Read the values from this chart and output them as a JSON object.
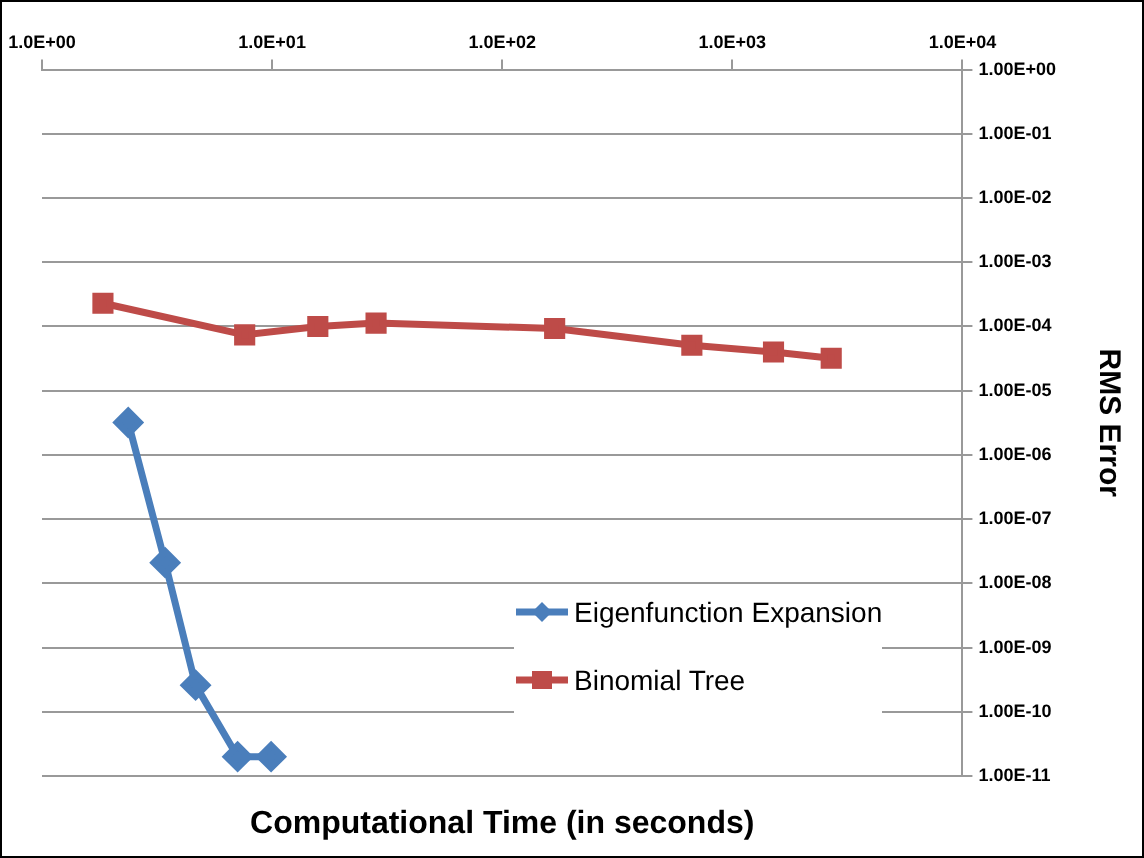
{
  "chart_data": {
    "type": "line",
    "xlabel": "Computational Time (in seconds)",
    "ylabel": "RMS Error",
    "log": "xy",
    "grid": "y",
    "legend": "bottom right",
    "xlim": [
      1,
      10000
    ],
    "xticks": [
      {
        "value": 1,
        "label": "1.0E+00"
      },
      {
        "value": 10,
        "label": "1.0E+01"
      },
      {
        "value": 100,
        "label": "1.0E+02"
      },
      {
        "value": 1000,
        "label": "1.0E+03"
      },
      {
        "value": 10000,
        "label": "1.0E+04"
      }
    ],
    "ylim": [
      1e-11,
      1
    ],
    "yticks": [
      {
        "value": 1,
        "label": "1.00E+00"
      },
      {
        "value": 0.1,
        "label": "1.00E-01"
      },
      {
        "value": 0.01,
        "label": "1.00E-02"
      },
      {
        "value": 0.001,
        "label": "1.00E-03"
      },
      {
        "value": 0.0001,
        "label": "1.00E-04"
      },
      {
        "value": 1e-05,
        "label": "1.00E-05"
      },
      {
        "value": 1e-06,
        "label": "1.00E-06"
      },
      {
        "value": 1e-07,
        "label": "1.00E-07"
      },
      {
        "value": 1e-08,
        "label": "1.00E-08"
      },
      {
        "value": 1e-09,
        "label": "1.00E-09"
      },
      {
        "value": 1e-10,
        "label": "1.00E-10"
      },
      {
        "value": 1e-11,
        "label": "1.00E-11"
      }
    ],
    "series": [
      {
        "name": "Eigenfunction Expansion",
        "color": "#4a7ebb",
        "marker": "diamond",
        "x": [
          2.37,
          3.43,
          4.65,
          7.08,
          9.9
        ],
        "values": [
          3.2e-06,
          2.1e-08,
          2.6e-10,
          2e-11,
          2e-11
        ]
      },
      {
        "name": "Binomial Tree",
        "color": "#be4b48",
        "marker": "square",
        "x": [
          1.84,
          7.6,
          15.8,
          28.3,
          169,
          667,
          1510,
          2690
        ],
        "values": [
          0.00023,
          7.4e-05,
          0.0001,
          0.000113,
          9.3e-05,
          5.1e-05,
          4e-05,
          3.2e-05
        ]
      }
    ]
  }
}
